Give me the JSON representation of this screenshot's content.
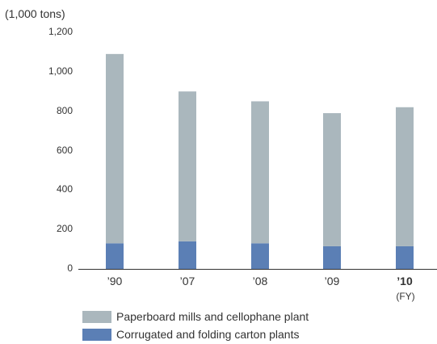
{
  "chart_data": {
    "type": "bar",
    "stacked": true,
    "unit_label": "(1,000 tons)",
    "categories": [
      "’90",
      "’07",
      "’08",
      "’09",
      "’10"
    ],
    "highlight_category_index": 4,
    "x_unit_label": "(FY)",
    "y_ticks": [
      "0",
      "200",
      "400",
      "600",
      "800",
      "1,000",
      "1,200"
    ],
    "ylim": [
      0,
      1200
    ],
    "grid": false,
    "legend_position": "bottom-left",
    "series": [
      {
        "name": "Corrugated and folding carton plants",
        "color": "#5b7fb5",
        "values": [
          130,
          140,
          130,
          115,
          115
        ]
      },
      {
        "name": "Paperboard mills and cellophane plant",
        "color": "#aab7bd",
        "values": [
          960,
          760,
          720,
          675,
          705
        ]
      }
    ],
    "legend": [
      {
        "label": "Paperboard mills and cellophane plant",
        "color": "#aab7bd"
      },
      {
        "label": "Corrugated and folding carton plants",
        "color": "#5b7fb5"
      }
    ]
  }
}
